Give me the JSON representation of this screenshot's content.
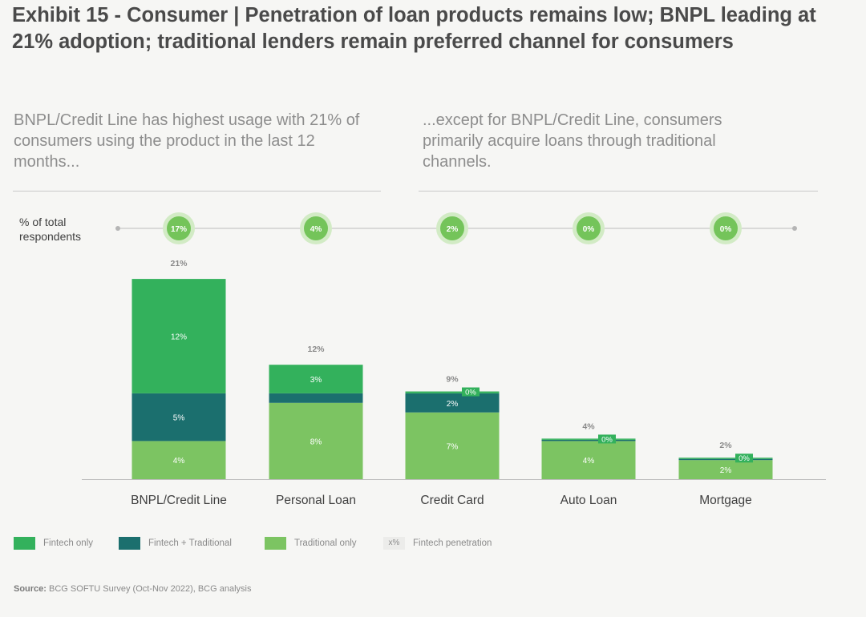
{
  "header": {
    "title": "Exhibit 15 - Consumer | Penetration of loan products remains low; BNPL leading at 21% adoption; traditional lenders remain preferred channel for consumers",
    "subtitle_left": "BNPL/Credit Line has highest usage with 21% of consumers using the product in the last 12 months...",
    "subtitle_right": "...except for BNPL/Credit Line, consumers primarily acquire loans through traditional channels.",
    "penetration_label": "% of total respondents"
  },
  "colors": {
    "fintech_only": "#33b15c",
    "fintech_traditional": "#1b6f6e",
    "traditional_only": "#7cc462",
    "bubble_inner": "#74c45a",
    "bubble_outer": "#d2ebc5"
  },
  "chart_data": {
    "type": "bar",
    "stacked": true,
    "categories": [
      "BNPL/Credit Line",
      "Personal Loan",
      "Credit Card",
      "Auto Loan",
      "Mortgage"
    ],
    "series": [
      {
        "name": "Traditional only",
        "values": [
          4,
          8,
          7,
          4,
          2
        ],
        "labels": [
          "4%",
          "8%",
          "7%",
          "4%",
          "2%"
        ]
      },
      {
        "name": "Fintech + Traditional",
        "values": [
          5,
          1,
          2,
          0.1,
          0.1
        ],
        "labels": [
          "5%",
          "1%",
          "2%",
          "",
          ""
        ]
      },
      {
        "name": "Fintech only",
        "values": [
          12,
          3,
          0.2,
          0.1,
          0.1
        ],
        "labels": [
          "12%",
          "3%",
          "0%",
          "0%",
          "0%"
        ]
      }
    ],
    "totals": [
      "21%",
      "12%",
      "9%",
      "4%",
      "2%"
    ],
    "fintech_penetration": [
      "17%",
      "4%",
      "2%",
      "0%",
      "0%"
    ],
    "ylim": [
      0,
      21
    ],
    "legend": {
      "position": "bottom",
      "items": [
        "Fintech only",
        "Fintech + Traditional",
        "Traditional only"
      ],
      "penetration_marker": "x%",
      "penetration_text": "Fintech penetration"
    }
  },
  "footer": {
    "source_label": "Source:",
    "source_text": "BCG SOFTU Survey (Oct-Nov 2022), BCG analysis"
  }
}
